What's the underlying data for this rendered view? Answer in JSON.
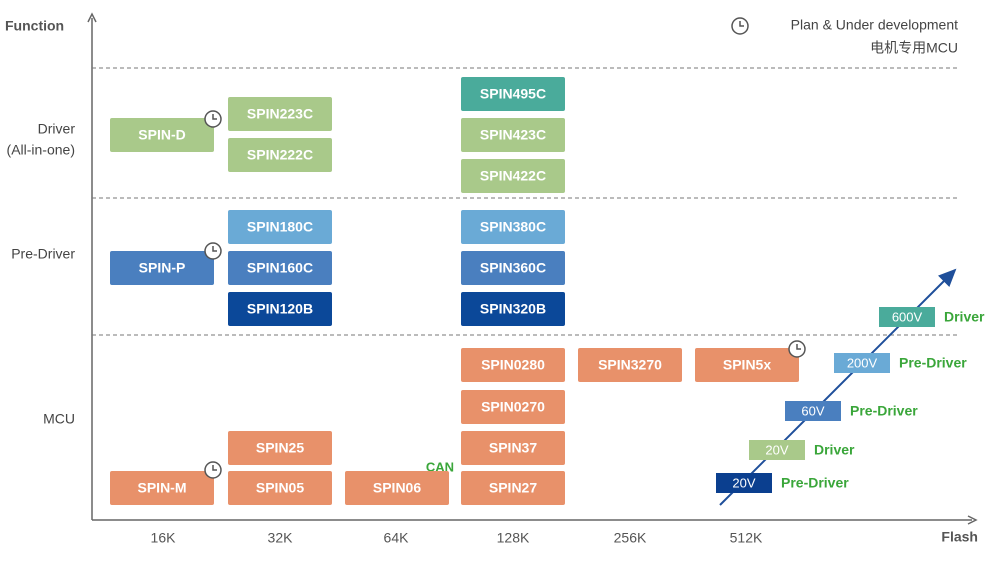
{
  "axes": {
    "y_label": "Function",
    "x_label": "Flash"
  },
  "columns": [
    "16K",
    "32K",
    "64K",
    "128K",
    "256K",
    "512K"
  ],
  "rows": [
    [
      "Driver",
      "(All-in-one)"
    ],
    [
      "Pre-Driver"
    ],
    [
      "MCU"
    ]
  ],
  "legend": {
    "planned": "Plan & Under development",
    "note": "电机专用MCU"
  },
  "products": [
    {
      "label": "SPIN-D",
      "color": "#a9c98a"
    },
    {
      "label": "SPIN223C",
      "color": "#a9c98a"
    },
    {
      "label": "SPIN222C",
      "color": "#a9c98a"
    },
    {
      "label": "SPIN495C",
      "color": "#4aab9b"
    },
    {
      "label": "SPIN423C",
      "color": "#a9c98a"
    },
    {
      "label": "SPIN422C",
      "color": "#a9c98a"
    },
    {
      "label": "SPIN180C",
      "color": "#6aaad6"
    },
    {
      "label": "SPIN160C",
      "color": "#4a7fbf"
    },
    {
      "label": "SPIN120B",
      "color": "#0b4899"
    },
    {
      "label": "SPIN-P",
      "color": "#4a7fbf"
    },
    {
      "label": "SPIN380C",
      "color": "#6aaad6"
    },
    {
      "label": "SPIN360C",
      "color": "#4a7fbf"
    },
    {
      "label": "SPIN320B",
      "color": "#0b4899"
    },
    {
      "label": "SPIN0280",
      "color": "#e8916a"
    },
    {
      "label": "SPIN3270",
      "color": "#e8916a"
    },
    {
      "label": "SPIN5x",
      "color": "#e8916a"
    },
    {
      "label": "SPIN0270",
      "color": "#e8916a"
    },
    {
      "label": "SPIN25",
      "color": "#e8916a"
    },
    {
      "label": "SPIN37",
      "color": "#e8916a"
    },
    {
      "label": "SPIN-M",
      "color": "#e8916a"
    },
    {
      "label": "SPIN05",
      "color": "#e8916a"
    },
    {
      "label": "SPIN06",
      "color": "#e8916a"
    },
    {
      "label": "SPIN27",
      "color": "#e8916a"
    }
  ],
  "annotation": "CAN",
  "voltage_badges": [
    {
      "voltage": "600V",
      "type": "Driver",
      "color": "#4aab9b"
    },
    {
      "voltage": "200V",
      "type": "Pre-Driver",
      "color": "#6aaad6"
    },
    {
      "voltage": "60V",
      "type": "Pre-Driver",
      "color": "#4a7fbf"
    },
    {
      "voltage": "20V",
      "type": "Driver",
      "color": "#a9c98a"
    },
    {
      "voltage": "20V",
      "type": "Pre-Driver",
      "color": "#0b3f8f"
    }
  ]
}
